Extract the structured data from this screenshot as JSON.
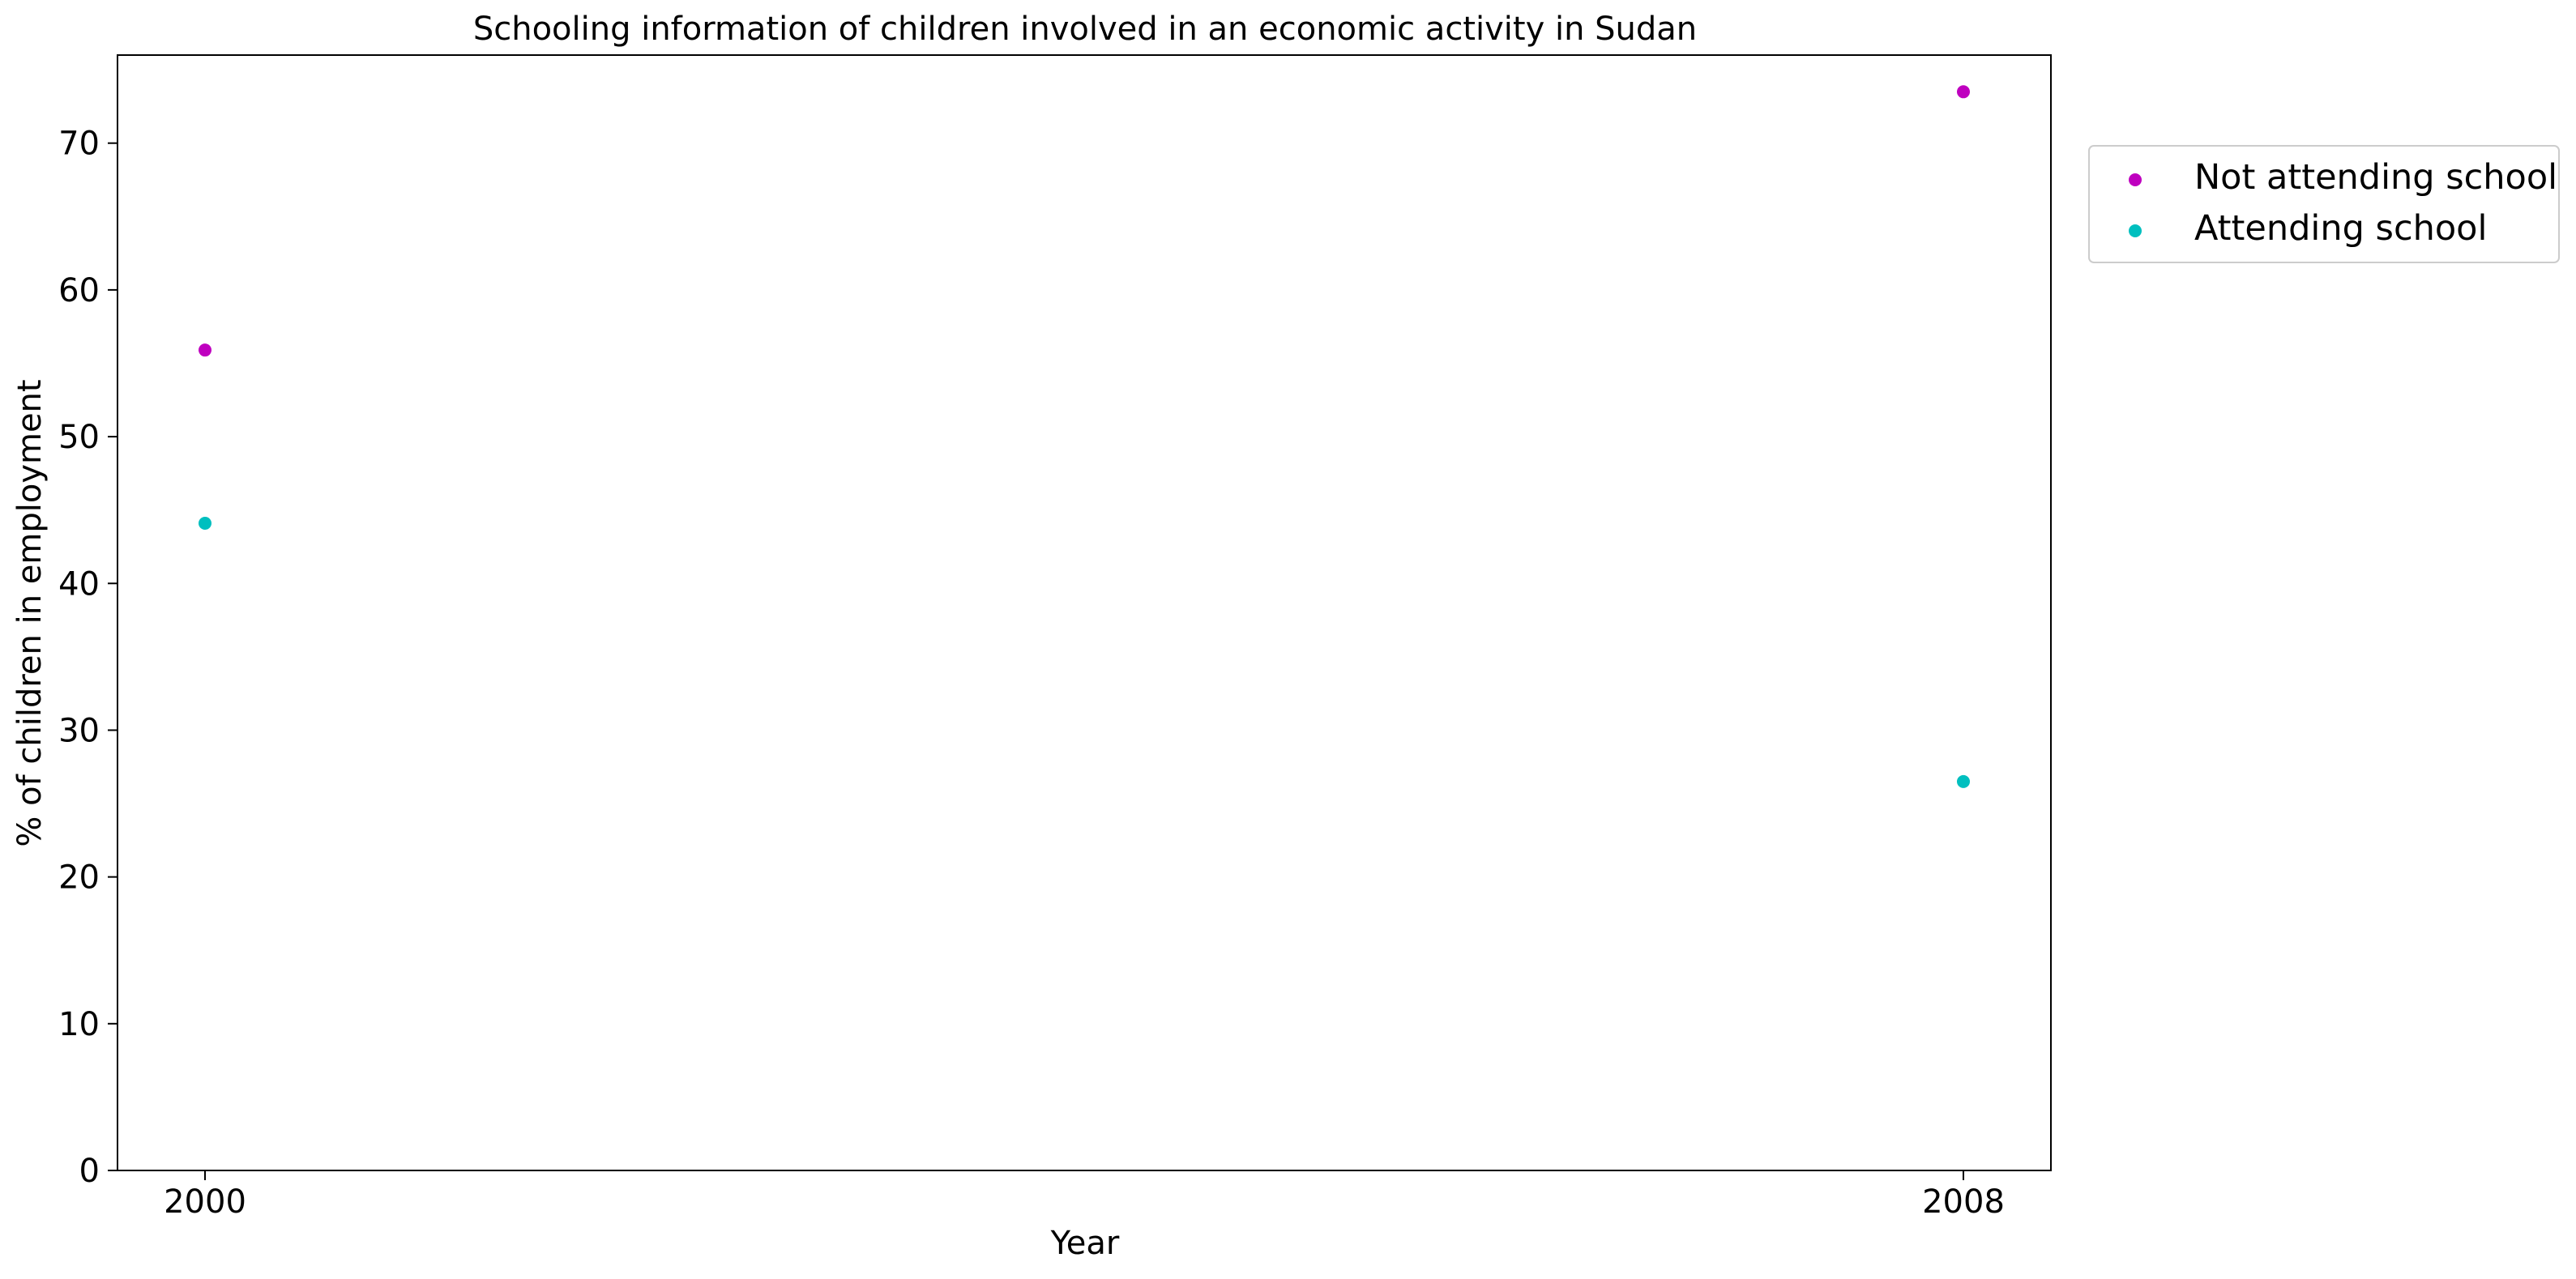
{
  "chart_data": {
    "type": "scatter",
    "title": "Schooling information of children involved in an economic activity in Sudan",
    "xlabel": "Year",
    "ylabel": "% of children in employment",
    "x": [
      "2000",
      "2008"
    ],
    "ylim": [
      0,
      76
    ],
    "yticks": [
      0,
      10,
      20,
      30,
      40,
      50,
      60,
      70
    ],
    "series": [
      {
        "name": "Not attending school",
        "color": "#bf00bf",
        "values": [
          55.9,
          73.5
        ]
      },
      {
        "name": "Attending school",
        "color": "#00bfbf",
        "values": [
          44.1,
          26.5
        ]
      }
    ],
    "grid": false,
    "legend_position": "outside-top-right"
  }
}
